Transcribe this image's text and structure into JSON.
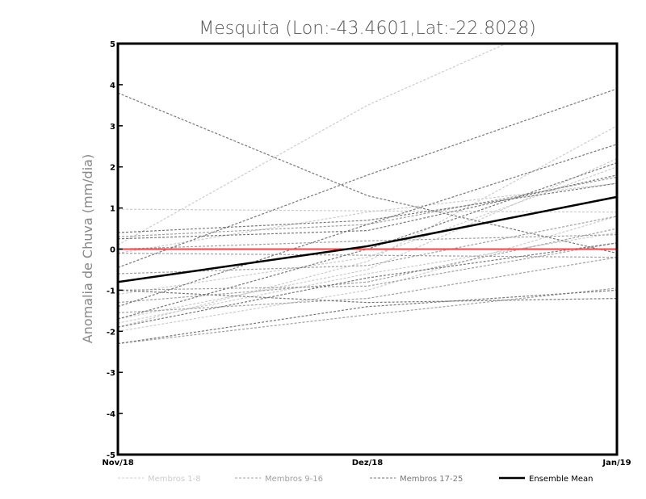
{
  "chart_data": {
    "type": "line",
    "title": "Mesquita (Lon:-43.4601,Lat:-22.8028)",
    "xlabel": "",
    "ylabel": "Anomalia de Chuva (mm/dia)",
    "categories": [
      "Nov/18",
      "Dez/18",
      "Jan/19"
    ],
    "ylim": [
      -5,
      5
    ],
    "yticks": [
      "5",
      "4",
      "3",
      "2",
      "1",
      "0",
      "-1",
      "-2",
      "-3",
      "-4",
      "-5"
    ],
    "ytick_values": [
      5,
      4,
      3,
      2,
      1,
      0,
      -1,
      -2,
      -3,
      -4,
      -5
    ],
    "groups": [
      {
        "name": "Membros 1-8",
        "color": "#cccccc",
        "members": [
          [
            0.1,
            3.5,
            6.2
          ],
          [
            0.97,
            0.93,
            0.9
          ],
          [
            -1.9,
            -0.3,
            3.0
          ],
          [
            -1.7,
            -0.5,
            2.2
          ],
          [
            -1.1,
            -0.2,
            2.0
          ],
          [
            -1.8,
            -0.6,
            0.4
          ],
          [
            -0.1,
            0.9,
            1.6
          ],
          [
            -2.0,
            -1.0,
            0.8
          ]
        ]
      },
      {
        "name": "Membros 9-16",
        "color": "#a0a0a0",
        "members": [
          [
            0.3,
            0.6,
            1.75
          ],
          [
            -0.6,
            -0.4,
            0.8
          ],
          [
            -1.0,
            -0.9,
            0.15
          ],
          [
            -1.55,
            -1.2,
            -0.2
          ],
          [
            -2.3,
            -1.6,
            -0.95
          ],
          [
            0.0,
            0.2,
            0.35
          ],
          [
            -1.3,
            -0.8,
            0.5
          ],
          [
            -0.1,
            -0.15,
            -0.2
          ]
        ]
      },
      {
        "name": "Membros 17-25",
        "color": "#777777",
        "members": [
          [
            3.8,
            1.3,
            -0.1
          ],
          [
            -0.45,
            1.8,
            3.9
          ],
          [
            -1.4,
            0.6,
            2.55
          ],
          [
            0.4,
            0.7,
            1.6
          ],
          [
            -1.0,
            -1.3,
            -1.2
          ],
          [
            -2.3,
            -1.4,
            -1.0
          ],
          [
            -1.7,
            0.0,
            2.1
          ],
          [
            0.25,
            0.45,
            1.8
          ],
          [
            -1.9,
            -0.7,
            0.15
          ]
        ]
      }
    ],
    "ensemble_mean": {
      "name": "Ensemble Mean",
      "color": "#000000",
      "values": [
        -0.8,
        0.07,
        1.27
      ]
    },
    "zero_line": {
      "color": "#ff4444",
      "value": 0
    },
    "legend": "bottom"
  }
}
